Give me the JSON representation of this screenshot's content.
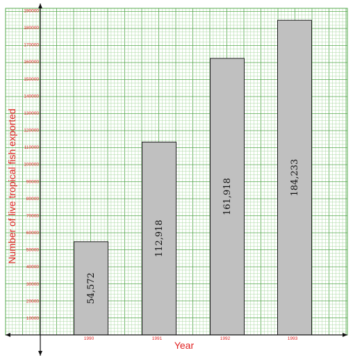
{
  "chart_data": {
    "type": "bar",
    "categories": [
      "1990",
      "1991",
      "1992",
      "1993"
    ],
    "values": [
      54572,
      112918,
      161918,
      184233
    ],
    "data_labels": [
      "54,572",
      "112,918",
      "161,918",
      "184,233"
    ],
    "xlabel": "Year",
    "ylabel": "Number of live tropical fish exported",
    "ylim": [
      0,
      190000
    ],
    "yticks": [
      10000,
      20000,
      30000,
      40000,
      50000,
      60000,
      70000,
      80000,
      90000,
      100000,
      110000,
      120000,
      130000,
      140000,
      150000,
      160000,
      170000,
      180000,
      190000
    ],
    "grid": true,
    "legend": "none"
  },
  "colors": {
    "bar_fill": "#c0c0c0",
    "bar_stroke": "#1a1a1a",
    "grid_minor": "#a8d8a0",
    "grid_major": "#55a84c",
    "label_text": "#e02020",
    "axis": "#111111"
  }
}
